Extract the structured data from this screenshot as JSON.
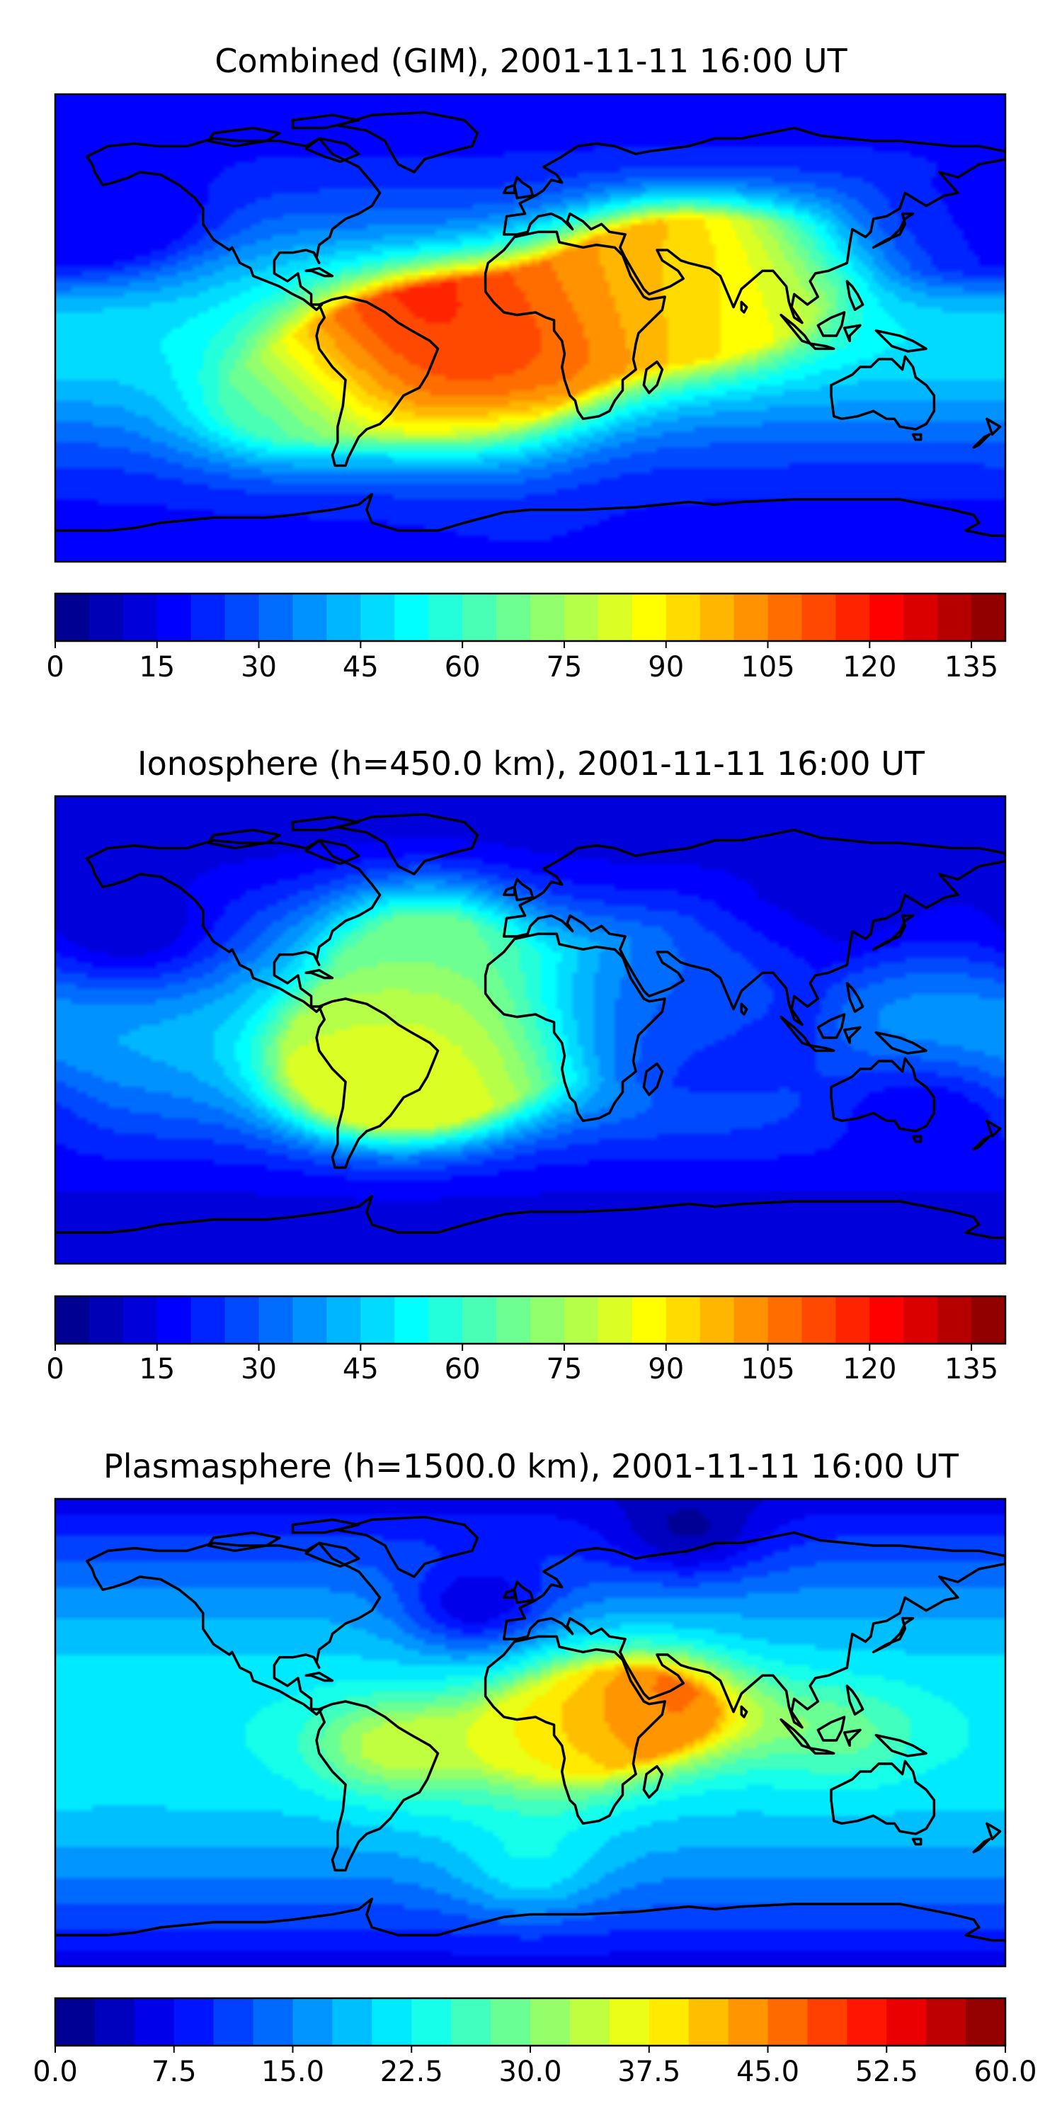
{
  "chart_data": [
    {
      "type": "heatmap",
      "subtype": "global contour map, equirectangular, with coastlines",
      "title": "Combined (GIM), 2001-11-11 16:00 UT",
      "colormap": "jet",
      "colorbar": {
        "min": 0,
        "max": 140,
        "step": 5,
        "ticks": [
          "0",
          "15",
          "30",
          "45",
          "60",
          "75",
          "90",
          "105",
          "120",
          "135"
        ]
      },
      "lon_range": [
        -180,
        180
      ],
      "lat_range": [
        -90,
        90
      ],
      "features": [
        {
          "lon": -45,
          "lat": -8,
          "value": 125,
          "note": "maximum over South Atlantic / Brazil"
        },
        {
          "lon": -8,
          "lat": -8,
          "value": 110,
          "note": "equatorial Atlantic / West Africa"
        },
        {
          "lon": 50,
          "lat": 20,
          "value": 105,
          "note": "Arabian Peninsula"
        },
        {
          "lon": 75,
          "lat": 12,
          "value": 80,
          "note": "India"
        },
        {
          "lon": -100,
          "lat": -30,
          "value": 55
        },
        {
          "lon": 150,
          "lat": 40,
          "value": 20
        },
        {
          "lon": -150,
          "lat": 45,
          "value": 15
        },
        {
          "lon": 0,
          "lat": -70,
          "value": 20
        }
      ]
    },
    {
      "type": "heatmap",
      "subtype": "global contour map, equirectangular, with coastlines",
      "title": "Ionosphere  (h=450.0 km), 2001-11-11 16:00 UT",
      "colormap": "jet",
      "colorbar": {
        "min": 0,
        "max": 140,
        "step": 5,
        "ticks": [
          "0",
          "15",
          "30",
          "45",
          "60",
          "75",
          "90",
          "105",
          "120",
          "135"
        ]
      },
      "lon_range": [
        -180,
        180
      ],
      "lat_range": [
        -90,
        90
      ],
      "features": [
        {
          "lon": -35,
          "lat": -10,
          "value": 88,
          "note": "maximum over South Atlantic / Brazil"
        },
        {
          "lon": -60,
          "lat": -15,
          "value": 80
        },
        {
          "lon": -40,
          "lat": 35,
          "value": 65,
          "note": "North Atlantic"
        },
        {
          "lon": 55,
          "lat": 12,
          "value": 45,
          "note": "Arabian Sea band"
        },
        {
          "lon": 60,
          "lat": 0,
          "value": 10,
          "note": "low band across Indian Ocean"
        },
        {
          "lon": 110,
          "lat": 50,
          "value": 10
        },
        {
          "lon": -150,
          "lat": 40,
          "value": 10
        },
        {
          "lon": 150,
          "lat": -35,
          "value": 15
        }
      ]
    },
    {
      "type": "heatmap",
      "subtype": "global contour map, equirectangular, with coastlines",
      "title": "Plasmasphere (h=1500.0 km), 2001-11-11 16:00 UT",
      "colormap": "jet",
      "colorbar": {
        "min": 0.0,
        "max": 60.0,
        "step": 2.5,
        "ticks": [
          "0.0",
          "7.5",
          "15.0",
          "22.5",
          "30.0",
          "37.5",
          "45.0",
          "52.5",
          "60.0"
        ]
      },
      "lon_range": [
        -180,
        180
      ],
      "lat_range": [
        -90,
        90
      ],
      "features": [
        {
          "lon": 48,
          "lat": 10,
          "value": 48,
          "note": "maximum over Horn of Africa"
        },
        {
          "lon": 10,
          "lat": 0,
          "value": 38,
          "note": "equatorial Africa"
        },
        {
          "lon": -55,
          "lat": -5,
          "value": 33,
          "note": "South America"
        },
        {
          "lon": 120,
          "lat": 0,
          "value": 28
        },
        {
          "lon": -20,
          "lat": 50,
          "value": 5,
          "note": "North Atlantic / Europe low"
        },
        {
          "lon": 60,
          "lat": 80,
          "value": 2
        },
        {
          "lon": -150,
          "lat": 10,
          "value": 20
        },
        {
          "lon": 0,
          "lat": -50,
          "value": 22
        }
      ]
    }
  ]
}
